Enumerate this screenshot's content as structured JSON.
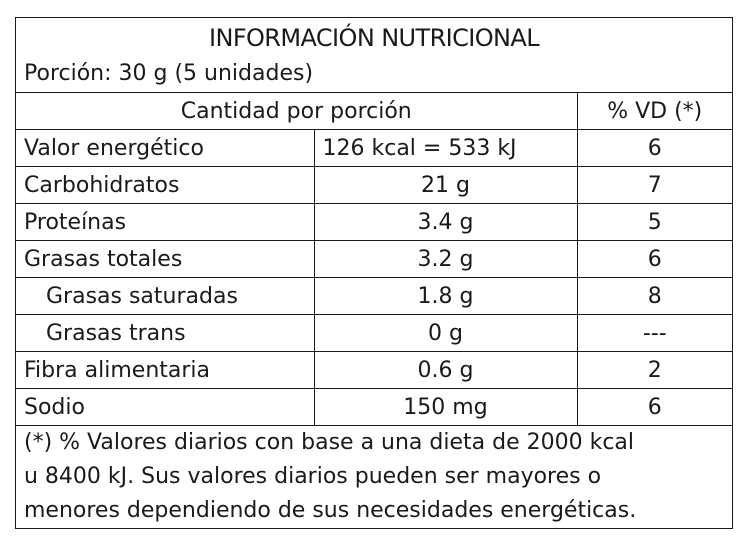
{
  "label": {
    "title": "INFORMACIÓN NUTRICIONAL",
    "portion": "Porción: 30 g (5 unidades)",
    "header": {
      "amount_label": "Cantidad por porción",
      "vd_label": "% VD (*)"
    },
    "rows": [
      {
        "name": "Valor energético",
        "amount": "126 kcal = 533 kJ",
        "vd": "6"
      },
      {
        "name": "Carbohidratos",
        "amount": "21 g",
        "vd": "7"
      },
      {
        "name": "Proteínas",
        "amount": "3.4 g",
        "vd": "5"
      },
      {
        "name": "Grasas totales",
        "amount": "3.2 g",
        "vd": "6"
      },
      {
        "name": "Grasas saturadas",
        "amount": "1.8 g",
        "vd": "8"
      },
      {
        "name": "Grasas trans",
        "amount": "0 g",
        "vd": "---"
      },
      {
        "name": "Fibra alimentaria",
        "amount": "0.6 g",
        "vd": "2"
      },
      {
        "name": "Sodio",
        "amount": "150 mg",
        "vd": "6"
      }
    ],
    "footnote": [
      "(*) % Valores diarios con base a una dieta de 2000 kcal",
      "u 8400 kJ. Sus valores diarios pueden ser mayores o",
      "menores dependiendo de sus necesidades energéticas."
    ]
  }
}
